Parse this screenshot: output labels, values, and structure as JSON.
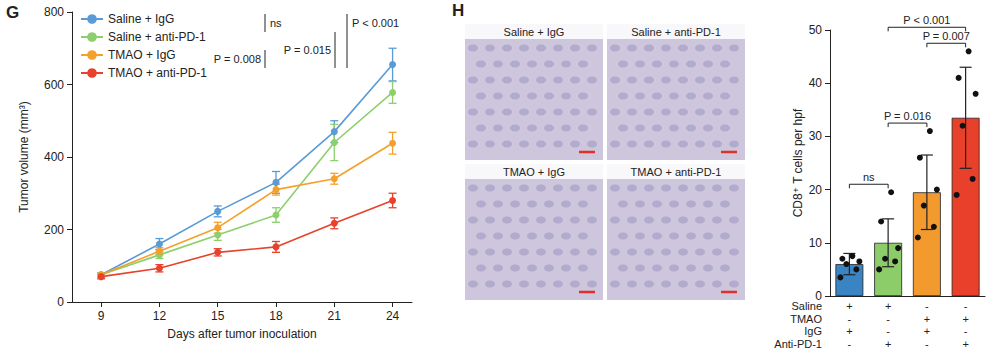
{
  "chart_data": [
    {
      "type": "line",
      "panel": "G",
      "x": [
        9,
        12,
        15,
        18,
        21,
        24
      ],
      "xlim": [
        7.5,
        25
      ],
      "xticks": [
        9,
        12,
        15,
        18,
        21,
        24
      ],
      "ylim": [
        0,
        800
      ],
      "yticks": [
        0,
        200,
        400,
        600,
        800
      ],
      "x_label": "Days after tumor inoculation",
      "y_label": "Tumor volume (mm³)",
      "grid": false,
      "legend": "upper left",
      "marker": "circle",
      "series": [
        {
          "name": "Saline + IgG",
          "color": "#5b9bd5",
          "values": [
            75,
            160,
            250,
            330,
            470,
            655
          ],
          "errors": [
            6,
            15,
            15,
            30,
            30,
            45
          ]
        },
        {
          "name": "Saline + anti-PD-1",
          "color": "#8ccf6c",
          "values": [
            75,
            130,
            185,
            240,
            440,
            578
          ],
          "errors": [
            6,
            10,
            15,
            20,
            50,
            30
          ]
        },
        {
          "name": "TMAO + IgG",
          "color": "#f5a02a",
          "values": [
            75,
            140,
            205,
            310,
            340,
            438
          ],
          "errors": [
            6,
            10,
            15,
            15,
            15,
            30
          ]
        },
        {
          "name": "TMAO + anti-PD-1",
          "color": "#e8412c",
          "values": [
            70,
            93,
            137,
            152,
            217,
            280
          ],
          "errors": [
            6,
            10,
            10,
            15,
            15,
            20
          ]
        }
      ],
      "annotations": [
        {
          "text": "ns",
          "between": [
            "Saline + IgG",
            "Saline + anti-PD-1"
          ]
        },
        {
          "text": "P = 0.015",
          "between": [
            "Saline + anti-PD-1",
            "TMAO + anti-PD-1"
          ]
        },
        {
          "text": "P < 0.001",
          "between": [
            "Saline + IgG",
            "TMAO + anti-PD-1"
          ]
        },
        {
          "text": "P = 0.008",
          "between": [
            "TMAO + IgG",
            "TMAO + anti-PD-1"
          ]
        }
      ]
    },
    {
      "type": "bar",
      "panel": "H",
      "categories": [
        null,
        null,
        null,
        null
      ],
      "values": [
        6,
        10,
        19.5,
        33.5
      ],
      "errors": [
        2,
        4.5,
        7,
        9.5
      ],
      "points": [
        [
          3.5,
          5,
          6,
          6.5,
          7,
          7.5
        ],
        [
          5,
          6.5,
          7,
          9,
          14,
          19.5
        ],
        [
          11,
          13,
          17,
          20,
          26,
          31
        ],
        [
          19,
          22,
          32,
          38,
          41,
          46
        ]
      ],
      "colors": [
        "#3b84c4",
        "#8ccd6a",
        "#f29a2e",
        "#e8402a"
      ],
      "ylim": [
        0,
        50
      ],
      "yticks": [
        0,
        10,
        20,
        30,
        40,
        50
      ],
      "y_label": "CD8⁺ T cells per hpf",
      "tick_labels": "y",
      "grid": false,
      "condition_table": [
        {
          "label": "Saline",
          "marks": [
            "+",
            "+",
            "-",
            "-"
          ]
        },
        {
          "label": "TMAO",
          "marks": [
            "-",
            "-",
            "+",
            "+"
          ]
        },
        {
          "label": "IgG",
          "marks": [
            "+",
            "-",
            "+",
            "-"
          ]
        },
        {
          "label": "Anti-PD-1",
          "marks": [
            "-",
            "+",
            "-",
            "+"
          ]
        }
      ],
      "annotations": [
        {
          "text": "ns",
          "between": [
            0,
            1
          ]
        },
        {
          "text": "P = 0.016",
          "between": [
            1,
            2
          ]
        },
        {
          "text": "P = 0.007",
          "between": [
            2,
            3
          ]
        },
        {
          "text": "P < 0.001",
          "between": [
            1,
            3
          ]
        }
      ],
      "images": [
        "Saline + IgG",
        "Saline + anti-PD-1",
        "TMAO + IgG",
        "TMAO + anti-PD-1"
      ]
    }
  ]
}
